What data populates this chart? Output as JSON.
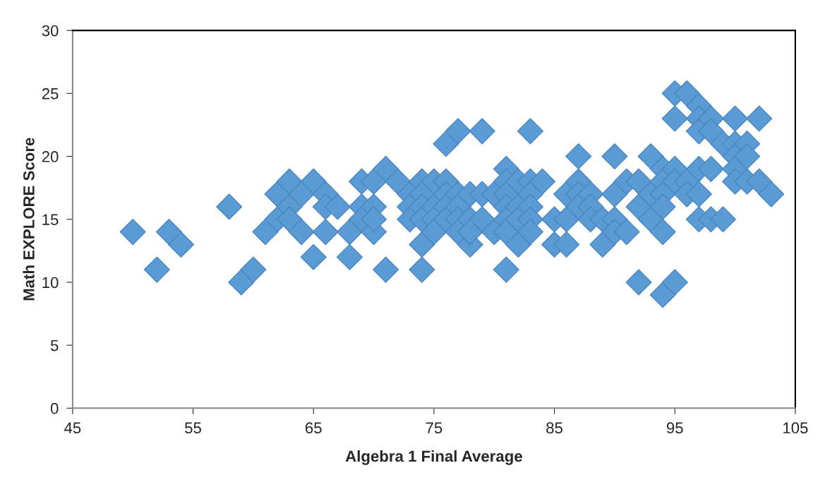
{
  "chart_data": {
    "type": "scatter",
    "xlabel": "Algebra 1 Final Average",
    "ylabel": "Math EXPLORE Score",
    "marker": "diamond",
    "color": "#5b9bd5",
    "xlim": [
      45,
      105
    ],
    "xticks": [
      45,
      55,
      65,
      75,
      85,
      95,
      105
    ],
    "ylim": [
      0,
      30
    ],
    "yticks": [
      0,
      5,
      10,
      15,
      20,
      25,
      30
    ],
    "x": [
      50,
      52,
      53,
      54,
      58,
      59,
      60,
      61,
      62,
      62,
      63,
      63,
      63,
      64,
      64,
      65,
      65,
      66,
      66,
      66,
      67,
      68,
      68,
      69,
      69,
      69,
      70,
      70,
      70,
      70,
      71,
      71,
      72,
      73,
      73,
      73,
      74,
      74,
      74,
      74,
      74,
      74,
      75,
      75,
      75,
      75,
      76,
      76,
      76,
      76,
      76,
      77,
      77,
      77,
      77,
      77,
      78,
      78,
      78,
      78,
      79,
      79,
      79,
      80,
      80,
      81,
      81,
      81,
      81,
      81,
      81,
      81,
      82,
      82,
      82,
      82,
      83,
      83,
      83,
      83,
      83,
      83,
      84,
      85,
      85,
      86,
      86,
      86,
      87,
      87,
      87,
      87,
      88,
      88,
      88,
      89,
      89,
      90,
      90,
      90,
      90,
      91,
      91,
      92,
      92,
      92,
      93,
      93,
      93,
      94,
      94,
      94,
      94,
      94,
      94,
      95,
      95,
      95,
      95,
      95,
      96,
      96,
      96,
      97,
      97,
      97,
      97,
      97,
      97,
      98,
      98,
      98,
      98,
      99,
      99,
      100,
      100,
      100,
      100,
      100,
      101,
      101,
      101,
      102,
      102,
      103
    ],
    "values": [
      14,
      11,
      14,
      13,
      16,
      10,
      11,
      14,
      15,
      17,
      18,
      16,
      15,
      14,
      17,
      18,
      12,
      17,
      14,
      16,
      16,
      14,
      12,
      18,
      16,
      15,
      18,
      16,
      14,
      15,
      19,
      11,
      18,
      17,
      16,
      15,
      18,
      17,
      16,
      15,
      13,
      11,
      18,
      16,
      15,
      14,
      21,
      18,
      17,
      16,
      15,
      22,
      17,
      16,
      15,
      14,
      17,
      15,
      13,
      14,
      22,
      17,
      15,
      17,
      14,
      19,
      18,
      17,
      16,
      15,
      14,
      11,
      18,
      16,
      15,
      13,
      22,
      18,
      17,
      16,
      15,
      14,
      18,
      15,
      13,
      17,
      15,
      13,
      20,
      18,
      17,
      16,
      17,
      16,
      15,
      15,
      13,
      20,
      17,
      15,
      14,
      18,
      14,
      18,
      16,
      10,
      20,
      17,
      15,
      19,
      18,
      17,
      16,
      14,
      9,
      25,
      23,
      19,
      18,
      10,
      25,
      18,
      17,
      24,
      23,
      22,
      19,
      17,
      15,
      23,
      22,
      19,
      15,
      21,
      15,
      23,
      21,
      20,
      19,
      18,
      21,
      20,
      18,
      23,
      18,
      17
    ]
  }
}
